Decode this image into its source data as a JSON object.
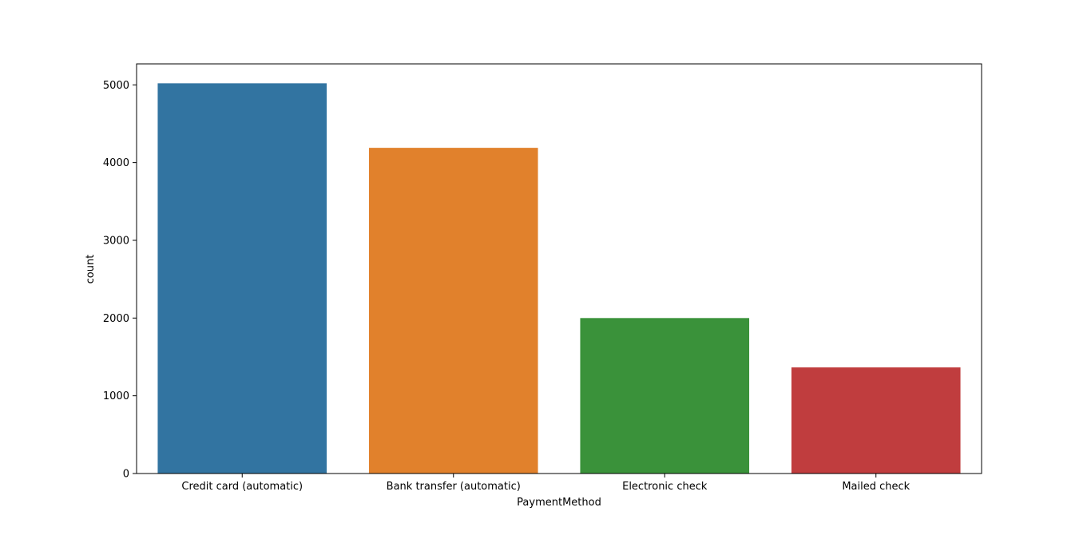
{
  "chart_data": {
    "type": "bar",
    "title": "",
    "xlabel": "PaymentMethod",
    "ylabel": "count",
    "categories": [
      "Credit card (automatic)",
      "Bank transfer (automatic)",
      "Electronic check",
      "Mailed check"
    ],
    "values": [
      5020,
      4190,
      2000,
      1365
    ],
    "colors": [
      "#3274a1",
      "#e1812c",
      "#3a923a",
      "#c03d3e"
    ],
    "ylim": [
      0,
      5270
    ],
    "yticks": [
      0,
      1000,
      2000,
      3000,
      4000,
      5000
    ],
    "grid": false,
    "legend": false
  }
}
